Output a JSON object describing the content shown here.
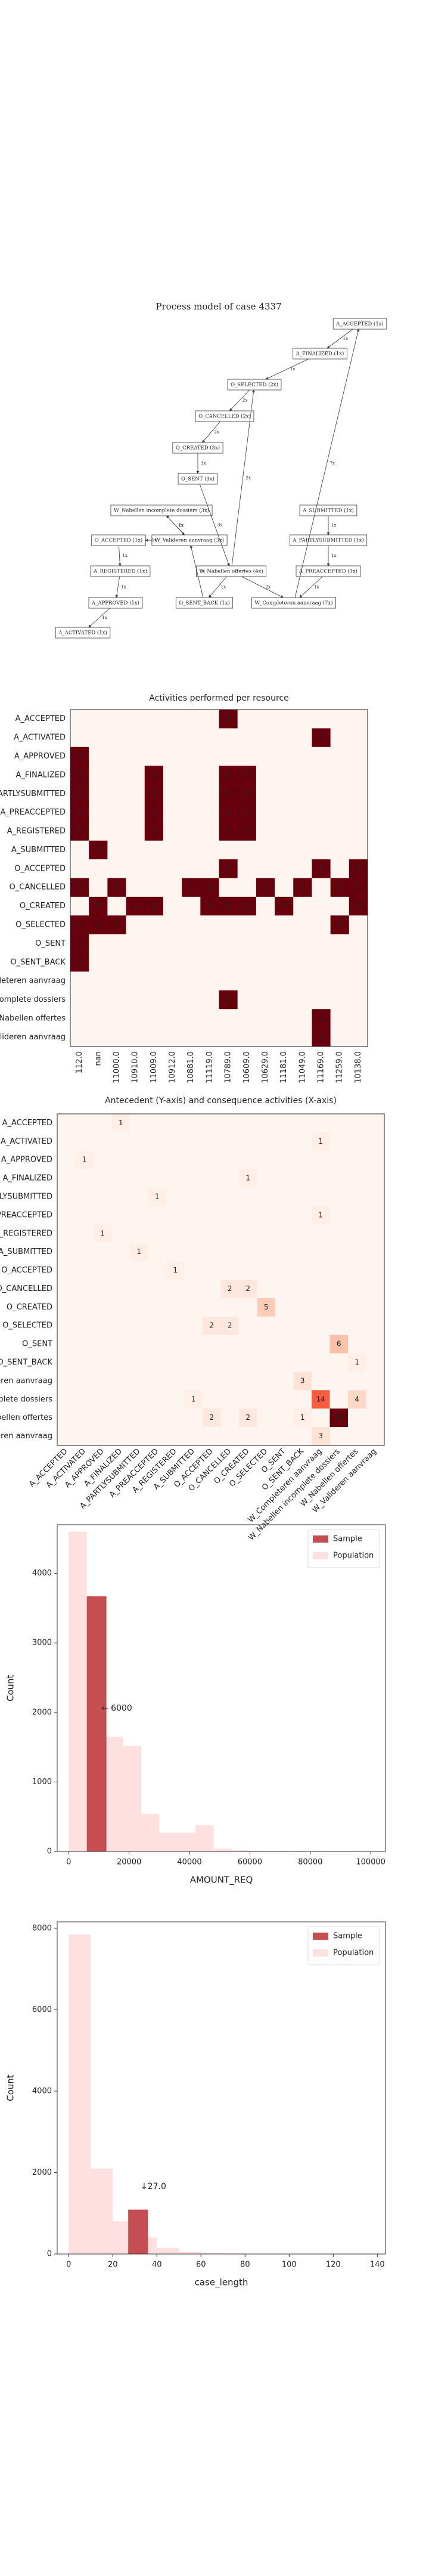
{
  "process_model": {
    "title": "Process model of case 4337",
    "nodes": [
      "A_ACCEPTED (1x)",
      "A_FINALIZED (1x)",
      "O_SELECTED (2x)",
      "O_CANCELLED (2x)",
      "O_CREATED (3x)",
      "O_SENT (3x)",
      "W_Nabellen incomplete dossiers (3x)",
      "A_SUBMITTED (1x)",
      "O_ACCEPTED (1x)",
      "W_Valideren aanvraag (3x)",
      "A_PARTLYSUBMITTED (1x)",
      "A_REGISTERED (1x)",
      "W_Nabellen offertes (4x)",
      "A_PREACCEPTED (1x)",
      "A_APPROVED (1x)",
      "O_SENT_BACK (1x)",
      "W_Completeren aanvraag (7x)",
      "A_ACTIVATED (1x)"
    ],
    "edges": [
      {
        "from": 7,
        "to": 10,
        "label": "1x"
      },
      {
        "from": 10,
        "to": 13,
        "label": "1x"
      },
      {
        "from": 13,
        "to": 16,
        "label": "1x"
      },
      {
        "from": 16,
        "to": 0,
        "label": "7x"
      },
      {
        "from": 0,
        "to": 1,
        "label": "1x"
      },
      {
        "from": 1,
        "to": 2,
        "label": "1x"
      },
      {
        "from": 2,
        "to": 3,
        "label": "2x"
      },
      {
        "from": 3,
        "to": 4,
        "label": "2x"
      },
      {
        "from": 4,
        "to": 5,
        "label": "3x"
      },
      {
        "from": 5,
        "to": 12,
        "label": "3x"
      },
      {
        "from": 12,
        "to": 16,
        "label": "2x"
      },
      {
        "from": 12,
        "to": 15,
        "label": "1x"
      },
      {
        "from": 15,
        "to": 9,
        "label": "1x"
      },
      {
        "from": 9,
        "to": 6,
        "label": "2x"
      },
      {
        "from": 6,
        "to": 9,
        "label": "1x"
      },
      {
        "from": 9,
        "to": 8,
        "label": "1x"
      },
      {
        "from": 8,
        "to": 11,
        "label": "1x"
      },
      {
        "from": 11,
        "to": 14,
        "label": "1x"
      },
      {
        "from": 14,
        "to": 17,
        "label": "1x"
      },
      {
        "from": 12,
        "to": 2,
        "label": "2x"
      }
    ]
  },
  "chart_data": [
    {
      "type": "heatmap",
      "title": "Activities performed per resource",
      "x_categories": [
        "112.0",
        "nan",
        "11000.0",
        "10910.0",
        "11009.0",
        "10912.0",
        "10881.0",
        "11119.0",
        "10789.0",
        "10609.0",
        "10629.0",
        "11181.0",
        "11049.0",
        "11169.0",
        "11259.0",
        "10138.0"
      ],
      "y_categories": [
        "A_ACCEPTED",
        "A_ACTIVATED",
        "A_APPROVED",
        "A_FINALIZED",
        "A_PARTLYSUBMITTED",
        "A_PREACCEPTED",
        "A_REGISTERED",
        "A_SUBMITTED",
        "O_ACCEPTED",
        "O_CANCELLED",
        "O_CREATED",
        "O_SELECTED",
        "O_SENT",
        "O_SENT_BACK",
        "W_Completeren aanvraag",
        "W_Nabellen incomplete dossiers",
        "W_Nabellen offertes",
        "W_Valideren aanvraag"
      ],
      "values": [
        [
          0,
          0,
          0,
          0,
          0,
          0,
          0,
          0,
          1,
          0,
          0,
          0,
          0,
          0,
          0,
          0
        ],
        [
          0,
          0,
          0,
          0,
          0,
          0,
          0,
          0,
          0,
          0,
          0,
          0,
          0,
          1,
          0,
          0
        ],
        [
          1,
          0,
          0,
          0,
          0,
          0,
          0,
          0,
          0,
          0,
          0,
          0,
          0,
          0,
          0,
          0
        ],
        [
          1,
          0,
          0,
          0,
          1,
          0,
          0,
          0,
          1,
          1,
          0,
          0,
          0,
          0,
          0,
          0
        ],
        [
          1,
          0,
          0,
          0,
          1,
          0,
          0,
          0,
          1,
          1,
          0,
          0,
          0,
          0,
          0,
          0
        ],
        [
          1,
          0,
          0,
          0,
          1,
          0,
          0,
          0,
          1,
          1,
          0,
          0,
          0,
          0,
          0,
          0
        ],
        [
          1,
          0,
          0,
          0,
          1,
          0,
          0,
          0,
          1,
          1,
          0,
          0,
          0,
          0,
          0,
          0
        ],
        [
          0,
          1,
          0,
          0,
          0,
          0,
          0,
          0,
          0,
          0,
          0,
          0,
          0,
          0,
          0,
          0
        ],
        [
          0,
          0,
          0,
          0,
          0,
          0,
          0,
          0,
          1,
          0,
          0,
          0,
          0,
          1,
          0,
          1
        ],
        [
          1,
          0,
          1,
          0,
          0,
          0,
          1,
          1,
          0,
          0,
          1,
          0,
          1,
          0,
          1,
          1
        ],
        [
          0,
          1,
          0,
          1,
          1,
          0,
          0,
          1,
          1,
          1,
          0,
          1,
          0,
          0,
          0,
          1
        ],
        [
          1,
          1,
          1,
          0,
          0,
          0,
          0,
          0,
          0,
          0,
          0,
          0,
          0,
          0,
          1,
          0
        ],
        [
          1,
          0,
          0,
          0,
          0,
          0,
          0,
          0,
          0,
          0,
          0,
          0,
          0,
          0,
          0,
          0
        ],
        [
          1,
          0,
          0,
          0,
          0,
          0,
          0,
          0,
          0,
          0,
          0,
          0,
          0,
          0,
          0,
          0
        ],
        [
          0,
          0,
          0,
          0,
          0,
          0,
          0,
          0,
          0,
          0,
          0,
          0,
          0,
          0,
          0,
          0
        ],
        [
          0,
          0,
          0,
          0,
          0,
          0,
          0,
          0,
          1,
          0,
          0,
          0,
          0,
          0,
          0,
          0
        ],
        [
          0,
          0,
          0,
          0,
          0,
          0,
          0,
          0,
          0,
          0,
          0,
          0,
          0,
          1,
          0,
          0
        ],
        [
          0,
          0,
          0,
          0,
          0,
          0,
          0,
          0,
          0,
          0,
          0,
          0,
          0,
          1,
          0,
          0
        ]
      ]
    },
    {
      "type": "heatmap",
      "title": "Antecedent (Y-axis) and consequence activities (X-axis)",
      "x_categories": [
        "A_ACCEPTED",
        "A_ACTIVATED",
        "A_APPROVED",
        "A_FINALIZED",
        "A_PARTLYSUBMITTED",
        "A_PREACCEPTED",
        "A_REGISTERED",
        "A_SUBMITTED",
        "O_ACCEPTED",
        "O_CANCELLED",
        "O_CREATED",
        "O_SELECTED",
        "O_SENT",
        "O_SENT_BACK",
        "W_Completeren aanvraag",
        "W_Nabellen incomplete dossiers",
        "W_Nabellen offertes",
        "W_Valideren aanvraag"
      ],
      "y_categories": [
        "A_ACCEPTED",
        "A_ACTIVATED",
        "A_APPROVED",
        "A_FINALIZED",
        "A_PARTLYSUBMITTED",
        "A_PREACCEPTED",
        "A_REGISTERED",
        "A_SUBMITTED",
        "O_ACCEPTED",
        "O_CANCELLED",
        "O_CREATED",
        "O_SELECTED",
        "O_SENT",
        "O_SENT_BACK",
        "W_Completeren aanvraag",
        "W_Nabellen incomplete dossiers",
        "W_Nabellen offertes",
        "W_Valideren aanvraag"
      ],
      "values": [
        [
          0,
          0,
          0,
          1,
          0,
          0,
          0,
          0,
          0,
          0,
          0,
          0,
          0,
          0,
          0,
          0,
          0,
          0
        ],
        [
          0,
          0,
          0,
          0,
          0,
          0,
          0,
          0,
          0,
          0,
          0,
          0,
          0,
          0,
          1,
          0,
          0,
          0
        ],
        [
          0,
          1,
          0,
          0,
          0,
          0,
          0,
          0,
          0,
          0,
          0,
          0,
          0,
          0,
          0,
          0,
          0,
          0
        ],
        [
          0,
          0,
          0,
          0,
          0,
          0,
          0,
          0,
          0,
          0,
          1,
          0,
          0,
          0,
          0,
          0,
          0,
          0
        ],
        [
          0,
          0,
          0,
          0,
          0,
          1,
          0,
          0,
          0,
          0,
          0,
          0,
          0,
          0,
          0,
          0,
          0,
          0
        ],
        [
          0,
          0,
          0,
          0,
          0,
          0,
          0,
          0,
          0,
          0,
          0,
          0,
          0,
          0,
          1,
          0,
          0,
          0
        ],
        [
          0,
          0,
          1,
          0,
          0,
          0,
          0,
          0,
          0,
          0,
          0,
          0,
          0,
          0,
          0,
          0,
          0,
          0
        ],
        [
          0,
          0,
          0,
          0,
          1,
          0,
          0,
          0,
          0,
          0,
          0,
          0,
          0,
          0,
          0,
          0,
          0,
          0
        ],
        [
          0,
          0,
          0,
          0,
          0,
          0,
          1,
          0,
          0,
          0,
          0,
          0,
          0,
          0,
          0,
          0,
          0,
          0
        ],
        [
          0,
          0,
          0,
          0,
          0,
          0,
          0,
          0,
          0,
          2,
          2,
          0,
          0,
          0,
          0,
          0,
          0,
          0
        ],
        [
          0,
          0,
          0,
          0,
          0,
          0,
          0,
          0,
          0,
          0,
          0,
          5,
          0,
          0,
          0,
          0,
          0,
          0
        ],
        [
          0,
          0,
          0,
          0,
          0,
          0,
          0,
          0,
          2,
          2,
          0,
          0,
          0,
          0,
          0,
          0,
          0,
          0
        ],
        [
          0,
          0,
          0,
          0,
          0,
          0,
          0,
          0,
          0,
          0,
          0,
          0,
          0,
          0,
          0,
          6,
          0,
          0
        ],
        [
          0,
          0,
          0,
          0,
          0,
          0,
          0,
          0,
          0,
          0,
          0,
          0,
          0,
          0,
          0,
          0,
          1,
          0
        ],
        [
          0,
          0,
          0,
          0,
          0,
          0,
          0,
          0,
          0,
          0,
          0,
          0,
          0,
          3,
          0,
          0,
          0,
          0
        ],
        [
          0,
          0,
          0,
          0,
          0,
          0,
          0,
          1,
          0,
          0,
          0,
          0,
          0,
          0,
          14,
          0,
          4,
          0
        ],
        [
          0,
          0,
          0,
          0,
          0,
          0,
          0,
          0,
          2,
          0,
          2,
          0,
          0,
          1,
          0,
          26,
          0,
          0
        ],
        [
          0,
          0,
          0,
          0,
          0,
          0,
          0,
          0,
          0,
          0,
          0,
          0,
          0,
          0,
          3,
          0,
          0,
          0
        ]
      ]
    },
    {
      "type": "histogram",
      "xlabel": "AMOUNT_REQ",
      "ylabel": "Count",
      "annotation": "← 6000",
      "xlim": [
        -3800,
        104900
      ],
      "ylim": [
        0,
        4700
      ],
      "xticks": [
        0,
        20000,
        40000,
        60000,
        80000,
        100000
      ],
      "yticks": [
        0,
        1000,
        2000,
        3000,
        4000
      ],
      "legend": "upper right",
      "series": [
        {
          "name": "Sample",
          "color": "#c44e52",
          "bins": [
            6000,
            12500
          ],
          "values": [
            3670
          ]
        },
        {
          "name": "Population",
          "color": "#fde0df",
          "bins": [
            0,
            6000,
            12000,
            18000,
            24000,
            30000,
            36000,
            42000,
            48000,
            54000,
            60000,
            66000,
            72000,
            78000,
            84000,
            90000,
            96000,
            102000
          ],
          "values": [
            4600,
            3650,
            1650,
            1520,
            540,
            270,
            270,
            380,
            40,
            20,
            10,
            10,
            5,
            5,
            0,
            0,
            3
          ]
        }
      ]
    },
    {
      "type": "histogram",
      "xlabel": "case_length",
      "ylabel": "Count",
      "annotation": "↓27.0",
      "xlim": [
        -5.2,
        143.7
      ],
      "ylim": [
        0,
        8160
      ],
      "xticks": [
        0,
        20,
        40,
        60,
        80,
        100,
        120,
        140
      ],
      "yticks": [
        0,
        2000,
        4000,
        6000,
        8000
      ],
      "legend": "upper right",
      "series": [
        {
          "name": "Sample",
          "color": "#c44e52",
          "bins": [
            27,
            36
          ],
          "values": [
            1090
          ]
        },
        {
          "name": "Population",
          "color": "#fde0df",
          "bins": [
            0,
            10,
            20,
            30,
            40,
            50,
            60,
            70,
            80,
            90,
            100,
            110,
            120,
            130,
            140
          ],
          "values": [
            7850,
            2100,
            800,
            400,
            150,
            60,
            30,
            20,
            10,
            5,
            3,
            2,
            1,
            1
          ]
        }
      ]
    }
  ]
}
